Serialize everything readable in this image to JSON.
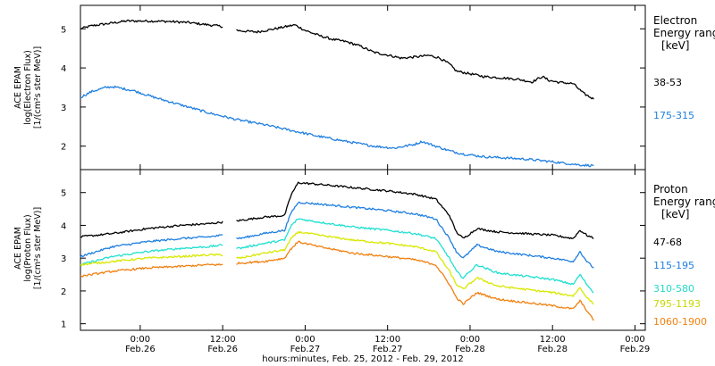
{
  "chart_data": {
    "type": "line",
    "x_axis": {
      "title": "hours:minutes, Feb. 25, 2012 - Feb. 29, 2012",
      "ticks": [
        {
          "hours": 24,
          "time": "0:00",
          "date": "Feb.26"
        },
        {
          "hours": 36,
          "time": "12:00",
          "date": "Feb.26"
        },
        {
          "hours": 48,
          "time": "0:00",
          "date": "Feb.27"
        },
        {
          "hours": 60,
          "time": "12:00",
          "date": "Feb.27"
        },
        {
          "hours": 72,
          "time": "0:00",
          "date": "Feb.28"
        },
        {
          "hours": 84,
          "time": "12:00",
          "date": "Feb.28"
        },
        {
          "hours": 96,
          "time": "0:00",
          "date": "Feb.29"
        }
      ],
      "range_hours_since_feb25": [
        15.3,
        97.5
      ]
    },
    "panels": [
      {
        "id": "electron",
        "ylabel_lines": [
          "ACE EPAM",
          "log(Electron Flux)",
          "[1/(cm²s ster MeV)]"
        ],
        "ylim": [
          1.4,
          5.6
        ],
        "yticks": [
          2,
          3,
          4,
          5
        ],
        "legend_title": [
          "Electron",
          "Energy range",
          "[keV]"
        ],
        "series": [
          {
            "name": "38-53",
            "color": "#000000",
            "gaps": [
              [
                36,
                38
              ]
            ],
            "points": [
              [
                15.3,
                5.0
              ],
              [
                17,
                5.08
              ],
              [
                20,
                5.15
              ],
              [
                22,
                5.2
              ],
              [
                25,
                5.2
              ],
              [
                28,
                5.19
              ],
              [
                31,
                5.16
              ],
              [
                34,
                5.1
              ],
              [
                36,
                5.06
              ],
              [
                38.5,
                4.95
              ],
              [
                41,
                4.92
              ],
              [
                43,
                4.98
              ],
              [
                45,
                5.05
              ],
              [
                46.5,
                5.1
              ],
              [
                48,
                4.96
              ],
              [
                50,
                4.83
              ],
              [
                52,
                4.73
              ],
              [
                54,
                4.67
              ],
              [
                56,
                4.56
              ],
              [
                58,
                4.4
              ],
              [
                60,
                4.33
              ],
              [
                62,
                4.25
              ],
              [
                64,
                4.28
              ],
              [
                66,
                4.32
              ],
              [
                67.5,
                4.26
              ],
              [
                69,
                4.1
              ],
              [
                70,
                3.92
              ],
              [
                72,
                3.85
              ],
              [
                74,
                3.78
              ],
              [
                77,
                3.74
              ],
              [
                79,
                3.71
              ],
              [
                81,
                3.64
              ],
              [
                82.5,
                3.78
              ],
              [
                83.5,
                3.68
              ],
              [
                85,
                3.63
              ],
              [
                87,
                3.6
              ],
              [
                88.5,
                3.35
              ],
              [
                90,
                3.2
              ]
            ]
          },
          {
            "name": "175-315",
            "color": "#1f7fe0",
            "gaps": [],
            "points": [
              [
                15.3,
                3.25
              ],
              [
                17,
                3.4
              ],
              [
                19,
                3.5
              ],
              [
                20,
                3.52
              ],
              [
                23,
                3.42
              ],
              [
                26,
                3.25
              ],
              [
                30,
                3.05
              ],
              [
                34,
                2.85
              ],
              [
                38,
                2.68
              ],
              [
                42,
                2.55
              ],
              [
                46,
                2.4
              ],
              [
                50,
                2.25
              ],
              [
                54,
                2.12
              ],
              [
                58,
                2.0
              ],
              [
                61,
                1.95
              ],
              [
                64,
                2.05
              ],
              [
                65,
                2.12
              ],
              [
                67,
                2.0
              ],
              [
                69,
                1.88
              ],
              [
                71,
                1.8
              ],
              [
                74,
                1.73
              ],
              [
                77,
                1.7
              ],
              [
                80,
                1.67
              ],
              [
                83,
                1.62
              ],
              [
                86,
                1.56
              ],
              [
                88,
                1.52
              ],
              [
                90,
                1.5
              ]
            ]
          }
        ]
      },
      {
        "id": "proton",
        "ylabel_lines": [
          "ACE EPAM",
          "log(Proton Flux)",
          "[1/(cm²s ster MeV)]"
        ],
        "ylim": [
          0.8,
          5.7
        ],
        "yticks": [
          1,
          2,
          3,
          4,
          5
        ],
        "legend_title": [
          "Proton",
          "Energy range",
          "[keV]"
        ],
        "series": [
          {
            "name": "47-68",
            "color": "#000000",
            "gaps": [
              [
                36,
                38
              ]
            ],
            "points": [
              [
                15.3,
                3.65
              ],
              [
                20,
                3.75
              ],
              [
                25,
                3.9
              ],
              [
                30,
                4.0
              ],
              [
                34,
                4.05
              ],
              [
                36,
                4.1
              ],
              [
                38.5,
                4.15
              ],
              [
                42,
                4.25
              ],
              [
                45,
                4.3
              ],
              [
                46,
                4.95
              ],
              [
                47,
                5.3
              ],
              [
                50,
                5.25
              ],
              [
                55,
                5.15
              ],
              [
                60,
                5.05
              ],
              [
                64,
                4.95
              ],
              [
                67,
                4.8
              ],
              [
                69,
                4.3
              ],
              [
                70,
                3.8
              ],
              [
                71,
                3.6
              ],
              [
                73,
                3.9
              ],
              [
                76,
                3.8
              ],
              [
                80,
                3.75
              ],
              [
                84,
                3.7
              ],
              [
                87,
                3.6
              ],
              [
                88,
                3.85
              ],
              [
                89,
                3.7
              ],
              [
                90,
                3.6
              ]
            ]
          },
          {
            "name": "115-195",
            "color": "#1f7fe0",
            "gaps": [
              [
                36,
                38
              ]
            ],
            "points": [
              [
                15.3,
                3.05
              ],
              [
                20,
                3.35
              ],
              [
                25,
                3.5
              ],
              [
                30,
                3.6
              ],
              [
                34,
                3.65
              ],
              [
                36,
                3.7
              ],
              [
                38.5,
                3.6
              ],
              [
                42,
                3.75
              ],
              [
                45,
                3.85
              ],
              [
                46,
                4.4
              ],
              [
                47,
                4.7
              ],
              [
                50,
                4.65
              ],
              [
                55,
                4.55
              ],
              [
                60,
                4.45
              ],
              [
                64,
                4.35
              ],
              [
                67,
                4.2
              ],
              [
                69,
                3.6
              ],
              [
                70,
                3.2
              ],
              [
                71,
                3.0
              ],
              [
                73,
                3.4
              ],
              [
                76,
                3.2
              ],
              [
                80,
                3.1
              ],
              [
                84,
                3.0
              ],
              [
                87,
                2.9
              ],
              [
                88,
                3.2
              ],
              [
                89,
                2.9
              ],
              [
                90,
                2.7
              ]
            ]
          },
          {
            "name": "310-580",
            "color": "#20e0d0",
            "gaps": [
              [
                36,
                38
              ]
            ],
            "points": [
              [
                15.3,
                2.8
              ],
              [
                20,
                3.05
              ],
              [
                25,
                3.2
              ],
              [
                30,
                3.3
              ],
              [
                34,
                3.35
              ],
              [
                36,
                3.4
              ],
              [
                38.5,
                3.3
              ],
              [
                42,
                3.45
              ],
              [
                45,
                3.55
              ],
              [
                46,
                4.0
              ],
              [
                47,
                4.2
              ],
              [
                50,
                4.1
              ],
              [
                55,
                3.95
              ],
              [
                60,
                3.85
              ],
              [
                64,
                3.75
              ],
              [
                67,
                3.6
              ],
              [
                69,
                3.0
              ],
              [
                70,
                2.6
              ],
              [
                71,
                2.4
              ],
              [
                73,
                2.8
              ],
              [
                76,
                2.55
              ],
              [
                80,
                2.45
              ],
              [
                84,
                2.35
              ],
              [
                87,
                2.2
              ],
              [
                88,
                2.5
              ],
              [
                89,
                2.2
              ],
              [
                90,
                1.95
              ]
            ]
          },
          {
            "name": "795-1193",
            "color": "#d8e800",
            "gaps": [
              [
                36,
                38
              ]
            ],
            "points": [
              [
                15.3,
                2.8
              ],
              [
                20,
                2.9
              ],
              [
                25,
                3.0
              ],
              [
                30,
                3.05
              ],
              [
                34,
                3.1
              ],
              [
                36,
                3.1
              ],
              [
                38.5,
                3.0
              ],
              [
                42,
                3.15
              ],
              [
                45,
                3.25
              ],
              [
                46,
                3.6
              ],
              [
                47,
                3.8
              ],
              [
                50,
                3.7
              ],
              [
                55,
                3.55
              ],
              [
                60,
                3.45
              ],
              [
                64,
                3.35
              ],
              [
                67,
                3.2
              ],
              [
                69,
                2.6
              ],
              [
                70,
                2.2
              ],
              [
                71,
                2.05
              ],
              [
                73,
                2.4
              ],
              [
                76,
                2.15
              ],
              [
                80,
                2.05
              ],
              [
                84,
                1.95
              ],
              [
                87,
                1.85
              ],
              [
                88,
                2.1
              ],
              [
                89,
                1.8
              ],
              [
                90,
                1.6
              ]
            ]
          },
          {
            "name": "1060-1900",
            "color": "#f08010",
            "gaps": [
              [
                36,
                38
              ]
            ],
            "points": [
              [
                15.3,
                2.45
              ],
              [
                20,
                2.6
              ],
              [
                25,
                2.7
              ],
              [
                30,
                2.75
              ],
              [
                34,
                2.8
              ],
              [
                36,
                2.8
              ],
              [
                38.5,
                2.85
              ],
              [
                42,
                2.9
              ],
              [
                45,
                3.0
              ],
              [
                46,
                3.3
              ],
              [
                47,
                3.5
              ],
              [
                50,
                3.35
              ],
              [
                55,
                3.15
              ],
              [
                60,
                3.05
              ],
              [
                64,
                2.95
              ],
              [
                67,
                2.8
              ],
              [
                69,
                2.2
              ],
              [
                70,
                1.8
              ],
              [
                71,
                1.6
              ],
              [
                73,
                1.95
              ],
              [
                76,
                1.75
              ],
              [
                80,
                1.65
              ],
              [
                84,
                1.55
              ],
              [
                87,
                1.45
              ],
              [
                88,
                1.7
              ],
              [
                89,
                1.4
              ],
              [
                90,
                1.1
              ]
            ]
          }
        ]
      }
    ]
  }
}
